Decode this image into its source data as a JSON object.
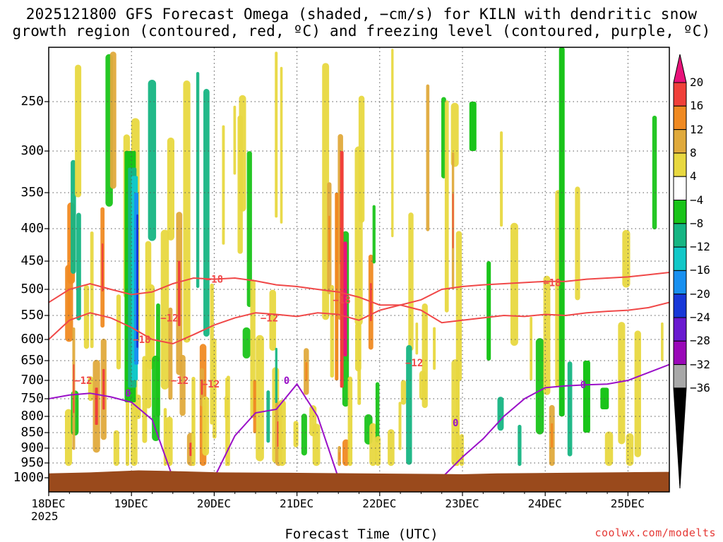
{
  "title_line1": "2025121800 GFS Forecast Omega (shaded, −cm/s) for KILN with dendritic snow",
  "title_line2": "growth region (contoured, red, ºC) and freezing level (contoured, purple, ºC)",
  "credit": "coolwx.com/modelts",
  "chart_data": {
    "type": "heatmap",
    "title": "2025121800 GFS Forecast Omega (shaded, −cm/s) for KILN with dendritic snow growth region (contoured, red, ºC) and freezing level (contoured, purple, ºC)",
    "xlabel": "Forecast Time (UTC)",
    "ylabel": "",
    "x_ticks": [
      "18DEC",
      "19DEC",
      "20DEC",
      "21DEC",
      "22DEC",
      "23DEC",
      "24DEC",
      "25DEC"
    ],
    "x_year": "2025",
    "x_range_hours": [
      0,
      180
    ],
    "y_ticks": [
      "250",
      "300",
      "350",
      "400",
      "450",
      "500",
      "550",
      "600",
      "650",
      "700",
      "750",
      "800",
      "850",
      "900",
      "950",
      "1000"
    ],
    "y_range": [
      200,
      1020
    ],
    "y_scale": "pressure",
    "grid": true,
    "colorbar": {
      "labels": [
        "20",
        "16",
        "12",
        "8",
        "4",
        "−4",
        "−8",
        "−12",
        "−16",
        "−20",
        "−24",
        "−28",
        "−32",
        "−36"
      ],
      "colors": [
        "#e8127a",
        "#f0403a",
        "#f08a22",
        "#e0aa3c",
        "#e8d840",
        "#ffffff",
        "#19c419",
        "#16b583",
        "#12c8c8",
        "#1890f0",
        "#1838d8",
        "#6a1ad0",
        "#9a08b8",
        "#a8a8a8",
        "#000000"
      ]
    },
    "contours": {
      "dendritic": {
        "color": "#f04848",
        "labels": [
          "−18",
          "−18",
          "−18",
          "−18",
          "−12",
          "−12",
          "−12",
          "−12",
          "−12",
          "−12"
        ],
        "series": [
          {
            "level": -12,
            "x": [
              0,
              6,
              12,
              18,
              24,
              30,
              36,
              42,
              48,
              54,
              60,
              66,
              72,
              78,
              84,
              90,
              96,
              102,
              108,
              114,
              120,
              126,
              132,
              138,
              144,
              150,
              156,
              162,
              168,
              174,
              180
            ],
            "y": [
              600,
              560,
              545,
              555,
              575,
              600,
              610,
              590,
              570,
              555,
              545,
              548,
              552,
              545,
              548,
              560,
              540,
              530,
              540,
              565,
              560,
              555,
              550,
              552,
              548,
              550,
              545,
              542,
              540,
              535,
              525
            ]
          },
          {
            "level": -18,
            "x": [
              0,
              6,
              12,
              18,
              24,
              30,
              36,
              42,
              48,
              54,
              60,
              66,
              72,
              78,
              84,
              90,
              96,
              102,
              108,
              114,
              120,
              126,
              132,
              138,
              144,
              150,
              156,
              162,
              168,
              174,
              180
            ],
            "y": [
              525,
              500,
              490,
              500,
              510,
              505,
              490,
              480,
              482,
              480,
              485,
              492,
              495,
              500,
              505,
              515,
              530,
              530,
              520,
              500,
              495,
              492,
              490,
              488,
              486,
              486,
              482,
              480,
              478,
              474,
              470
            ]
          }
        ]
      },
      "freezing_level": {
        "color": "#9a10c8",
        "labels": [
          "0",
          "0",
          "0",
          "0"
        ],
        "series": [
          {
            "level": 0,
            "x": [
              0,
              6,
              12,
              18,
              24,
              30,
              36,
              42,
              48,
              54,
              60,
              66,
              72,
              78,
              84,
              90,
              96,
              102,
              108,
              114,
              120,
              126,
              132,
              138,
              144,
              150,
              156,
              162,
              168,
              174,
              180
            ],
            "y": [
              750,
              740,
              735,
              745,
              760,
              810,
              1000,
              1000,
              1000,
              860,
              790,
              780,
              710,
              800,
              1000,
              1000,
              1000,
              1000,
              1000,
              1000,
              930,
              870,
              800,
              750,
              720,
              715,
              712,
              710,
              700,
              680,
              660
            ]
          }
        ]
      }
    }
  }
}
